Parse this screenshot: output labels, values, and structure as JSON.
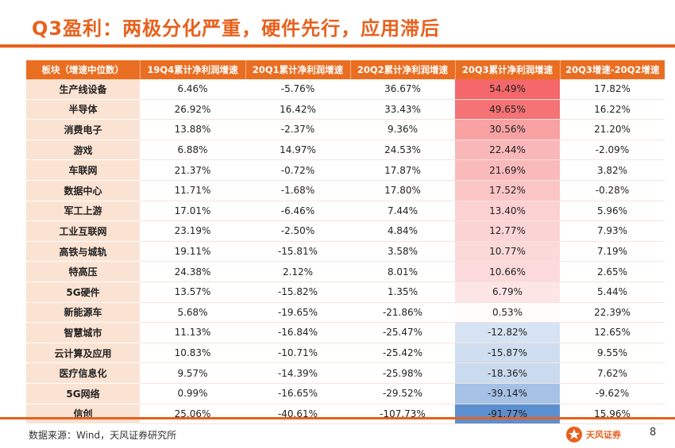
{
  "slide": {
    "title": "Q3盈利：两极分化严重，硬件先行，应用滞后",
    "page_number": "8"
  },
  "table": {
    "headers": [
      "板块（增速中位数）",
      "19Q4累计净利润增速",
      "20Q1累计净利润增速",
      "20Q2累计净利润增速",
      "20Q3累计净利润增速",
      "20Q3增速-20Q2增速"
    ],
    "rows": [
      {
        "name": "生产线设备",
        "q4_19": "6.46%",
        "q1_20": "-5.76%",
        "q2_20": "36.67%",
        "q3_20": "54.49%",
        "delta": "17.82%",
        "q3_value": 54.49
      },
      {
        "name": "半导体",
        "q4_19": "26.92%",
        "q1_20": "16.42%",
        "q2_20": "33.43%",
        "q3_20": "49.65%",
        "delta": "16.22%",
        "q3_value": 49.65
      },
      {
        "name": "消费电子",
        "q4_19": "13.88%",
        "q1_20": "-2.37%",
        "q2_20": "9.36%",
        "q3_20": "30.56%",
        "delta": "21.20%",
        "q3_value": 30.56
      },
      {
        "name": "游戏",
        "q4_19": "6.88%",
        "q1_20": "14.97%",
        "q2_20": "24.53%",
        "q3_20": "22.44%",
        "delta": "-2.09%",
        "q3_value": 22.44
      },
      {
        "name": "车联网",
        "q4_19": "21.37%",
        "q1_20": "-0.72%",
        "q2_20": "17.87%",
        "q3_20": "21.69%",
        "delta": "3.82%",
        "q3_value": 21.69
      },
      {
        "name": "数据中心",
        "q4_19": "11.71%",
        "q1_20": "-1.68%",
        "q2_20": "17.80%",
        "q3_20": "17.52%",
        "delta": "-0.28%",
        "q3_value": 17.52
      },
      {
        "name": "军工上游",
        "q4_19": "17.01%",
        "q1_20": "-6.46%",
        "q2_20": "7.44%",
        "q3_20": "13.40%",
        "delta": "5.96%",
        "q3_value": 13.4
      },
      {
        "name": "工业互联网",
        "q4_19": "23.19%",
        "q1_20": "-2.50%",
        "q2_20": "4.84%",
        "q3_20": "12.77%",
        "delta": "7.93%",
        "q3_value": 12.77
      },
      {
        "name": "高铁与城轨",
        "q4_19": "19.11%",
        "q1_20": "-15.81%",
        "q2_20": "3.58%",
        "q3_20": "10.77%",
        "delta": "7.19%",
        "q3_value": 10.77
      },
      {
        "name": "特高压",
        "q4_19": "24.38%",
        "q1_20": "2.12%",
        "q2_20": "8.01%",
        "q3_20": "10.66%",
        "delta": "2.65%",
        "q3_value": 10.66
      },
      {
        "name": "5G硬件",
        "q4_19": "13.57%",
        "q1_20": "-15.82%",
        "q2_20": "1.35%",
        "q3_20": "6.79%",
        "delta": "5.44%",
        "q3_value": 6.79
      },
      {
        "name": "新能源车",
        "q4_19": "5.68%",
        "q1_20": "-19.65%",
        "q2_20": "-21.86%",
        "q3_20": "0.53%",
        "delta": "22.39%",
        "q3_value": 0.53
      },
      {
        "name": "智慧城市",
        "q4_19": "11.13%",
        "q1_20": "-16.84%",
        "q2_20": "-25.47%",
        "q3_20": "-12.82%",
        "delta": "12.65%",
        "q3_value": -12.82
      },
      {
        "name": "云计算及应用",
        "q4_19": "10.83%",
        "q1_20": "-10.71%",
        "q2_20": "-25.42%",
        "q3_20": "-15.87%",
        "delta": "9.55%",
        "q3_value": -15.87
      },
      {
        "name": "医疗信息化",
        "q4_19": "9.57%",
        "q1_20": "-14.39%",
        "q2_20": "-25.98%",
        "q3_20": "-18.36%",
        "delta": "7.62%",
        "q3_value": -18.36
      },
      {
        "name": "5G网络",
        "q4_19": "0.99%",
        "q1_20": "-16.65%",
        "q2_20": "-29.52%",
        "q3_20": "-39.14%",
        "delta": "-9.62%",
        "q3_value": -39.14
      },
      {
        "name": "信创",
        "q4_19": "25.06%",
        "q1_20": "-40.61%",
        "q2_20": "-107.73%",
        "q3_20": "-91.77%",
        "delta": "15.96%",
        "q3_value": -91.77
      }
    ]
  },
  "heatmap_colors": {
    "positive": "#f4676a",
    "negative": "#5b8fd0",
    "neutral": "#ffffff"
  },
  "footer": {
    "source": "数据来源：Wind，天风证券研究所",
    "brand": "天风证券",
    "brand_color": "#e8601c"
  }
}
